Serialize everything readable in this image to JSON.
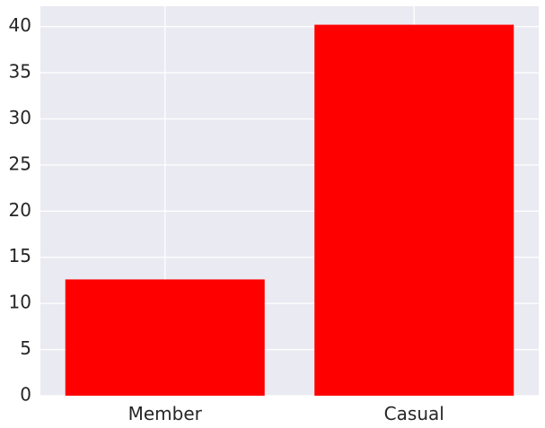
{
  "chart_data": {
    "type": "bar",
    "title": "",
    "xlabel": "",
    "ylabel": "",
    "categories": [
      "Member",
      "Casual"
    ],
    "values": [
      12.6,
      40.2
    ],
    "ylim": [
      0,
      42.2
    ],
    "yticks": [
      0,
      5,
      10,
      15,
      20,
      25,
      30,
      35,
      40
    ],
    "ytick_labels": [
      "0",
      "5",
      "10",
      "15",
      "20",
      "25",
      "30",
      "35",
      "40"
    ],
    "grid": true,
    "legend": "none",
    "bar_color": "#ff0000",
    "background_color": "#eaeaf2",
    "grid_color": "#ffffff"
  }
}
